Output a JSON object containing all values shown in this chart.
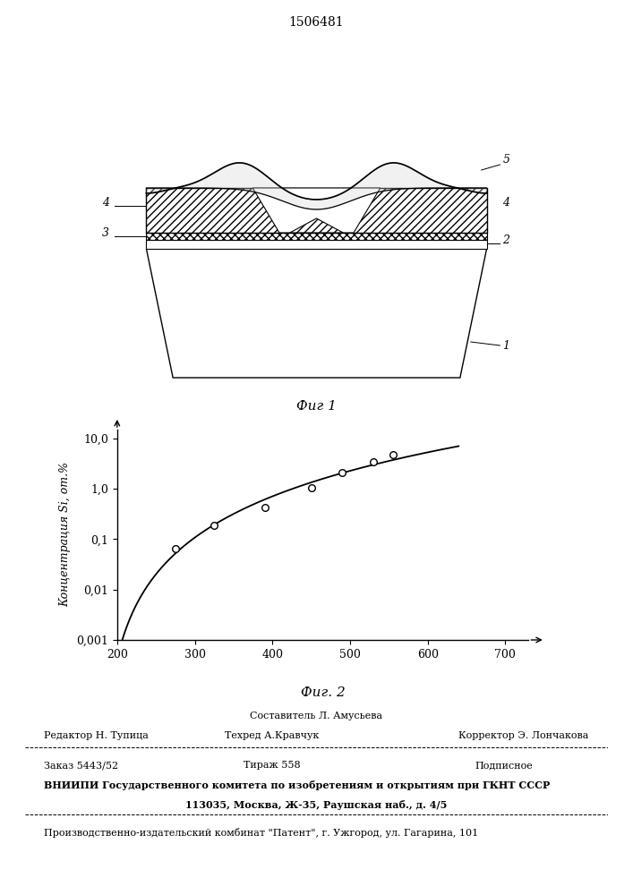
{
  "patent_number": "1506481",
  "fig1_caption": "Фиг 1",
  "fig2_caption": "Фиг. 2",
  "fig2_ylabel": "Концентрация Si, от.%",
  "fig2_ytick_labels": [
    "0,001",
    "0,01",
    "0,1",
    "1,0",
    "10,0"
  ],
  "fig2_yticks": [
    0.001,
    0.01,
    0.1,
    1.0,
    10.0
  ],
  "fig2_xticks": [
    200,
    300,
    400,
    500,
    600,
    700
  ],
  "data_points_x": [
    275,
    325,
    390,
    450,
    490,
    530,
    555
  ],
  "data_points_y": [
    0.065,
    0.19,
    0.42,
    1.05,
    2.1,
    3.5,
    4.8
  ],
  "footer_line1": "Составитель Л. Амусьева",
  "footer_line2_left": "Редактор Н. Тупица",
  "footer_line2_mid": "Техред А.Кравчук",
  "footer_line2_right": "Корректор Э. Лончакова",
  "footer_line3_left": "Заказ 5443/52",
  "footer_line3_mid": "Тираж 558",
  "footer_line3_right": "Подписное",
  "footer_line4": "ВНИИПИ Государственного комитета по изобретениям и открытиям при ГКНТ СССР",
  "footer_line5": "113035, Москва, Ж-35, Раушская наб., д. 4/5",
  "footer_line6": "Производственно-издательский комбинат \"Патент\", г. Ужгород, ул. Гагарина, 101",
  "bg_color": "#ffffff",
  "line_color": "#000000"
}
